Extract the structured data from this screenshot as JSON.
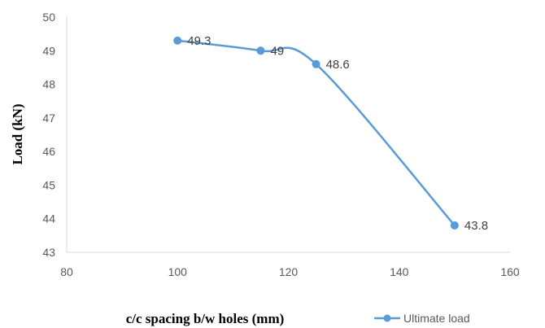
{
  "chart_data": {
    "type": "line",
    "x": [
      100,
      115,
      125,
      150
    ],
    "series": [
      {
        "name": "Ultimate load",
        "values": [
          49.3,
          49,
          48.6,
          43.8
        ],
        "color": "#5b9bd5"
      }
    ],
    "data_labels": [
      "49.3",
      "49",
      "48.6",
      "43.8"
    ],
    "xlabel": "c/c spacing b/w holes (mm)",
    "ylabel": "Load (kN)",
    "xlim": [
      80,
      160
    ],
    "ylim": [
      43,
      50
    ],
    "xticks": [
      80,
      100,
      120,
      140,
      160
    ],
    "yticks": [
      43,
      44,
      45,
      46,
      47,
      48,
      49,
      50
    ],
    "grid": false,
    "smooth": true,
    "legend": "bottom-right"
  }
}
